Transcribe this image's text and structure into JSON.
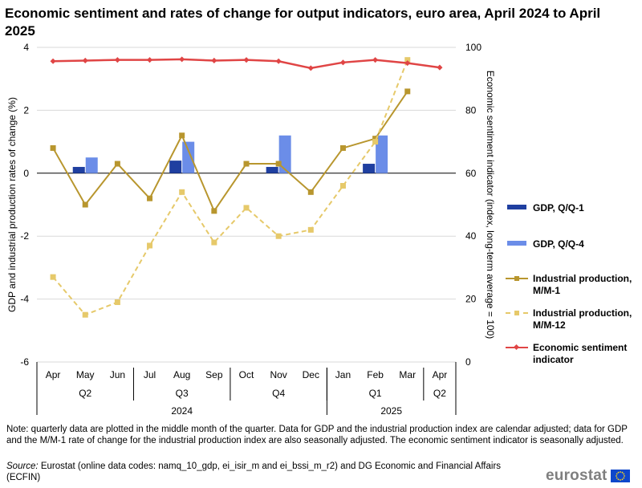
{
  "title": "Economic sentiment and rates of change for output indicators, euro area, April 2024 to April 2025",
  "chart_data": {
    "type": "bar+line",
    "months": [
      "Apr",
      "May",
      "Jun",
      "Jul",
      "Aug",
      "Sep",
      "Oct",
      "Nov",
      "Dec",
      "Jan",
      "Feb",
      "Mar",
      "Apr"
    ],
    "quarters": [
      {
        "label": "Q2",
        "start": 0,
        "end": 2
      },
      {
        "label": "Q3",
        "start": 3,
        "end": 5
      },
      {
        "label": "Q4",
        "start": 6,
        "end": 8
      },
      {
        "label": "Q1",
        "start": 9,
        "end": 11
      },
      {
        "label": "Q2",
        "start": 12,
        "end": 12
      }
    ],
    "years": [
      {
        "label": "2024",
        "start": 0,
        "end": 8
      },
      {
        "label": "2025",
        "start": 9,
        "end": 12
      }
    ],
    "left_axis": {
      "label": "GDP and industrial production rates of change (%)",
      "min": -6,
      "max": 4,
      "ticks": [
        -6,
        -4,
        -2,
        0,
        2,
        4
      ]
    },
    "right_axis": {
      "label": "Economic sentiment indicator (index, long-term average = 100)",
      "min": 0,
      "max": 100,
      "ticks": [
        0,
        20,
        40,
        60,
        80,
        100
      ]
    },
    "series": [
      {
        "name": "GDP, Q/Q-1",
        "type": "bar",
        "axis": "left",
        "color": "#1f3fa0",
        "values": [
          null,
          0.2,
          null,
          null,
          0.4,
          null,
          null,
          0.2,
          null,
          null,
          0.3,
          null,
          null
        ]
      },
      {
        "name": "GDP, Q/Q-4",
        "type": "bar",
        "axis": "left",
        "color": "#6b8de8",
        "values": [
          null,
          0.5,
          null,
          null,
          1.0,
          null,
          null,
          1.2,
          null,
          null,
          1.2,
          null,
          null
        ]
      },
      {
        "name": "Industrial production, M/M-1",
        "type": "line",
        "axis": "left",
        "color": "#b8962e",
        "dash": false,
        "marker": "square",
        "values": [
          0.8,
          -1.0,
          0.3,
          -0.8,
          1.2,
          -1.2,
          0.3,
          0.3,
          -0.6,
          0.8,
          1.1,
          2.6,
          null
        ]
      },
      {
        "name": "Industrial production, M/M-12",
        "type": "line",
        "axis": "left",
        "color": "#e6c96a",
        "dash": true,
        "marker": "square",
        "values": [
          -3.3,
          -4.5,
          -4.1,
          -2.3,
          -0.6,
          -2.2,
          -1.1,
          -2.0,
          -1.8,
          -0.4,
          1.0,
          3.6,
          null
        ]
      },
      {
        "name": "Economic sentiment indicator",
        "type": "line",
        "axis": "right",
        "color": "#e04545",
        "dash": false,
        "marker": "diamond",
        "values": [
          95.6,
          95.8,
          96.0,
          96.0,
          96.2,
          95.8,
          96.0,
          95.6,
          93.4,
          95.2,
          96.0,
          95.0,
          93.6
        ]
      }
    ],
    "legend_position": "right"
  },
  "legend": {
    "gdp_qq1": "GDP, Q/Q-1",
    "gdp_qq4": "GDP, Q/Q-4",
    "ip_mm1": "Industrial production, M/M-1",
    "ip_mm12": "Industrial production, M/M-12",
    "esi": "Economic sentiment indicator"
  },
  "note": "Note: quarterly data are plotted in the middle month of the quarter. Data for GDP and the industrial production index are calendar adjusted; data for GDP and the M/M-1 rate of change for the industrial production index are also seasonally adjusted. The economic sentiment indicator is seasonally adjusted.",
  "source_label": "Source:",
  "source_text": "Eurostat (online data codes: namq_10_gdp, ei_isir_m and ei_bssi_m_r2) and DG Economic and Financial Affairs (ECFIN)",
  "logo_text": "eurostat",
  "colors": {
    "axis": "#000000",
    "grid": "#d9d9d9"
  }
}
